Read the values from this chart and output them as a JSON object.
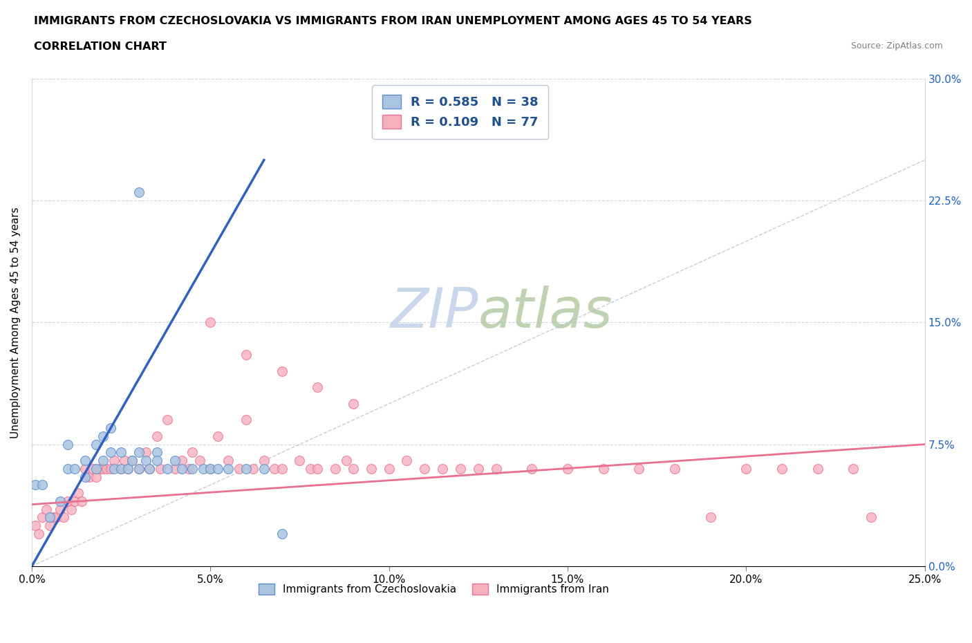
{
  "title_line1": "IMMIGRANTS FROM CZECHOSLOVAKIA VS IMMIGRANTS FROM IRAN UNEMPLOYMENT AMONG AGES 45 TO 54 YEARS",
  "title_line2": "CORRELATION CHART",
  "source_text": "Source: ZipAtlas.com",
  "ylabel": "Unemployment Among Ages 45 to 54 years",
  "xlim": [
    0.0,
    0.25
  ],
  "ylim": [
    0.0,
    0.3
  ],
  "r_czech": 0.585,
  "n_czech": 38,
  "r_iran": 0.109,
  "n_iran": 77,
  "color_czech_fill": "#aac4e0",
  "color_czech_edge": "#5a8fcc",
  "color_iran_fill": "#f5b0c0",
  "color_iran_edge": "#e87090",
  "color_czech_line": "#3060c0",
  "color_iran_line": "#e87090",
  "color_legend_text": "#1f5090",
  "watermark_color": "#c8d8ea",
  "xticks": [
    0.0,
    0.05,
    0.1,
    0.15,
    0.2,
    0.25
  ],
  "yticks": [
    0.0,
    0.075,
    0.15,
    0.225,
    0.3
  ],
  "czech_x": [
    0.001,
    0.003,
    0.005,
    0.008,
    0.01,
    0.01,
    0.012,
    0.015,
    0.015,
    0.018,
    0.018,
    0.02,
    0.02,
    0.022,
    0.022,
    0.023,
    0.025,
    0.025,
    0.027,
    0.028,
    0.03,
    0.03,
    0.032,
    0.033,
    0.035,
    0.035,
    0.038,
    0.04,
    0.042,
    0.045,
    0.048,
    0.05,
    0.052,
    0.055,
    0.06,
    0.065,
    0.07,
    0.03
  ],
  "czech_y": [
    0.05,
    0.05,
    0.03,
    0.04,
    0.06,
    0.075,
    0.06,
    0.065,
    0.055,
    0.06,
    0.075,
    0.065,
    0.08,
    0.07,
    0.085,
    0.06,
    0.06,
    0.07,
    0.06,
    0.065,
    0.06,
    0.07,
    0.065,
    0.06,
    0.07,
    0.065,
    0.06,
    0.065,
    0.06,
    0.06,
    0.06,
    0.06,
    0.06,
    0.06,
    0.06,
    0.06,
    0.02,
    0.23
  ],
  "iran_x": [
    0.001,
    0.002,
    0.003,
    0.004,
    0.005,
    0.006,
    0.007,
    0.008,
    0.009,
    0.01,
    0.011,
    0.012,
    0.013,
    0.014,
    0.015,
    0.016,
    0.017,
    0.018,
    0.019,
    0.02,
    0.021,
    0.022,
    0.023,
    0.025,
    0.026,
    0.027,
    0.028,
    0.03,
    0.032,
    0.033,
    0.035,
    0.036,
    0.038,
    0.04,
    0.042,
    0.044,
    0.045,
    0.047,
    0.05,
    0.052,
    0.055,
    0.058,
    0.06,
    0.062,
    0.065,
    0.068,
    0.07,
    0.075,
    0.078,
    0.08,
    0.085,
    0.088,
    0.09,
    0.095,
    0.1,
    0.105,
    0.11,
    0.115,
    0.12,
    0.125,
    0.13,
    0.14,
    0.15,
    0.16,
    0.17,
    0.18,
    0.19,
    0.2,
    0.21,
    0.22,
    0.23,
    0.235,
    0.05,
    0.06,
    0.07,
    0.08,
    0.09
  ],
  "iran_y": [
    0.025,
    0.02,
    0.03,
    0.035,
    0.025,
    0.03,
    0.03,
    0.035,
    0.03,
    0.04,
    0.035,
    0.04,
    0.045,
    0.04,
    0.06,
    0.055,
    0.06,
    0.055,
    0.06,
    0.06,
    0.06,
    0.06,
    0.065,
    0.06,
    0.065,
    0.06,
    0.065,
    0.06,
    0.07,
    0.06,
    0.08,
    0.06,
    0.09,
    0.06,
    0.065,
    0.06,
    0.07,
    0.065,
    0.06,
    0.08,
    0.065,
    0.06,
    0.09,
    0.06,
    0.065,
    0.06,
    0.06,
    0.065,
    0.06,
    0.06,
    0.06,
    0.065,
    0.06,
    0.06,
    0.06,
    0.065,
    0.06,
    0.06,
    0.06,
    0.06,
    0.06,
    0.06,
    0.06,
    0.06,
    0.06,
    0.06,
    0.03,
    0.06,
    0.06,
    0.06,
    0.06,
    0.03,
    0.15,
    0.13,
    0.12,
    0.11,
    0.1
  ],
  "czech_trend_x": [
    0.0,
    0.065
  ],
  "czech_trend_y": [
    0.0,
    0.25
  ],
  "iran_trend_x": [
    0.0,
    0.25
  ],
  "iran_trend_y": [
    0.038,
    0.075
  ]
}
